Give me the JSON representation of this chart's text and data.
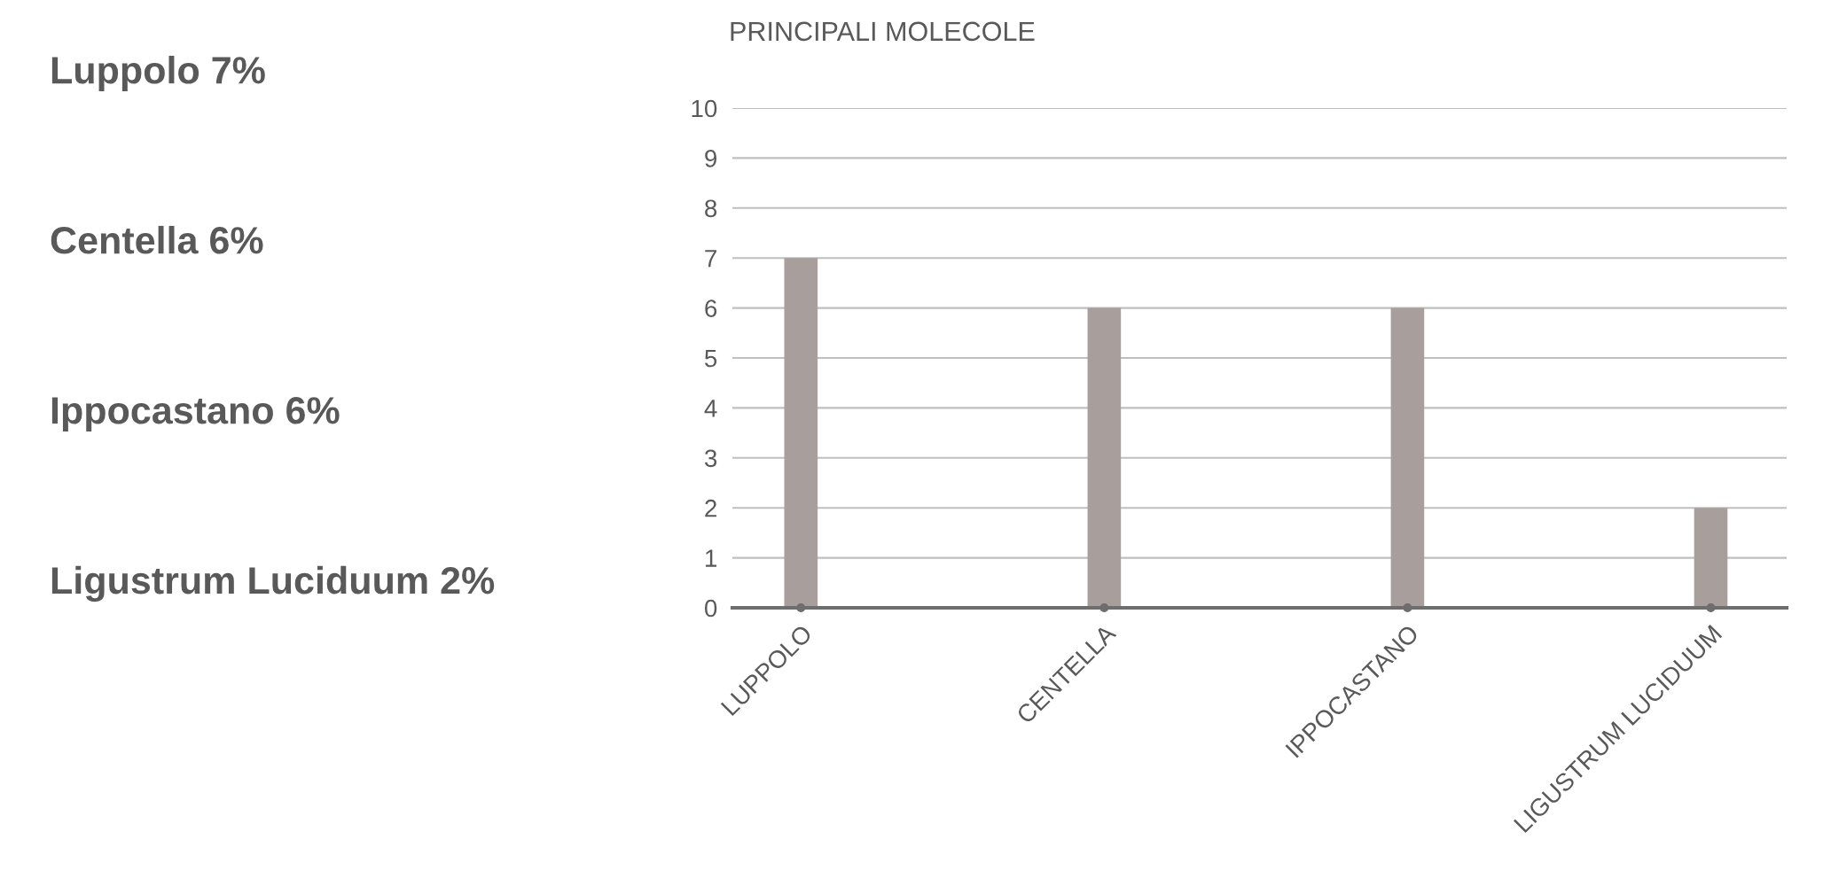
{
  "chart_data": {
    "type": "bar",
    "title": "PRINCIPALI MOLECOLE",
    "categories": [
      "LUPPOLO",
      "CENTELLA",
      "IPPOCASTANO",
      "LIGUSTRUM LUCIDUUM"
    ],
    "series": [
      {
        "color": "#a89e9c",
        "values": [
          7,
          6,
          6,
          2
        ]
      },
      {
        "type": "scatter",
        "color": "#6e6e6e",
        "values": [
          0,
          0,
          0,
          0
        ]
      }
    ],
    "ylim": [
      0,
      10
    ],
    "yticks": [
      0,
      1,
      2,
      3,
      4,
      5,
      6,
      7,
      8,
      9,
      10
    ],
    "grid": "y",
    "legend": false,
    "annotations": [
      "Luppolo 7%",
      "Centella 6%",
      "Ippocastano 6%",
      "Ligustrum Luciduum 2%"
    ]
  }
}
